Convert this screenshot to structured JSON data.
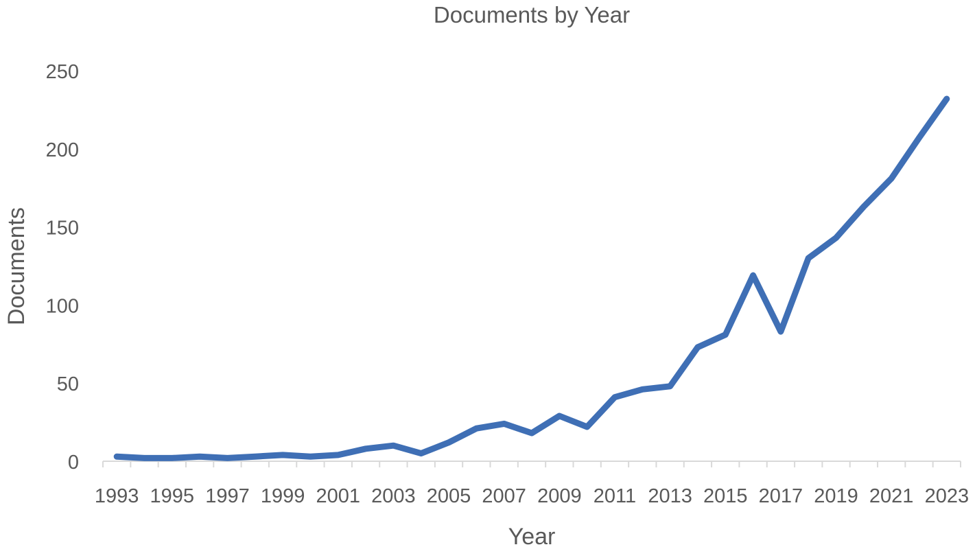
{
  "chart_data": {
    "type": "line",
    "title": "Documents by Year",
    "xlabel": "Year",
    "ylabel": "Documents",
    "x": [
      1993,
      1994,
      1995,
      1996,
      1997,
      1998,
      1999,
      2000,
      2001,
      2002,
      2003,
      2004,
      2005,
      2006,
      2007,
      2008,
      2009,
      2010,
      2011,
      2012,
      2013,
      2014,
      2015,
      2016,
      2017,
      2018,
      2019,
      2020,
      2021,
      2022,
      2023
    ],
    "x_tick_labels": [
      "1993",
      "1995",
      "1997",
      "1999",
      "2001",
      "2003",
      "2005",
      "2007",
      "2009",
      "2011",
      "2013",
      "2015",
      "2017",
      "2019",
      "2021",
      "2023"
    ],
    "series": [
      {
        "values": [
          3,
          2,
          2,
          3,
          2,
          3,
          4,
          3,
          4,
          8,
          10,
          5,
          12,
          21,
          24,
          18,
          29,
          22,
          41,
          46,
          48,
          73,
          81,
          119,
          83,
          130,
          143,
          163,
          181,
          207,
          232
        ]
      }
    ],
    "ylim": [
      0,
      250
    ],
    "y_ticks": [
      0,
      50,
      100,
      150,
      200,
      250
    ],
    "grid": false,
    "legend": "none",
    "colors": {
      "line": "#3f6fb5",
      "axis": "#d9d9d9",
      "text": "#595959"
    }
  }
}
